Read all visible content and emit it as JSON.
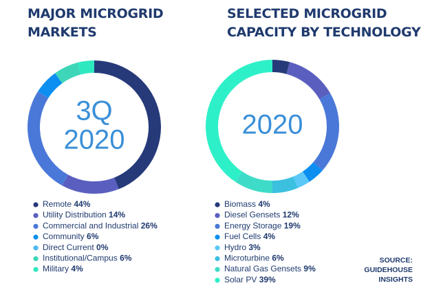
{
  "chart_data": [
    {
      "type": "donut",
      "title": [
        "MAJOR MICROGRID",
        "MARKETS"
      ],
      "center_label": [
        "3Q",
        "2020"
      ],
      "categories": [
        "Remote",
        "Utility Distribution",
        "Commercial and Industrial",
        "Community",
        "Direct Current",
        "Institutional/Campus",
        "Military"
      ],
      "values": [
        44,
        14,
        26,
        6,
        0,
        6,
        4
      ],
      "value_labels": [
        "44%",
        "14%",
        "26%",
        "6%",
        "0%",
        "6%",
        "4%"
      ],
      "colors": [
        "#263a7a",
        "#5a5fbf",
        "#4a78d8",
        "#0c8ff0",
        "#4fb8f0",
        "#3ed6b8",
        "#2ee8c0"
      ]
    },
    {
      "type": "donut",
      "title": [
        "SELECTED MICROGRID",
        "CAPACITY BY TECHNOLOGY"
      ],
      "center_label": [
        "2020"
      ],
      "categories": [
        "Biomass",
        "Diesel Gensets",
        "Energy Storage",
        "Fuel Cells",
        "Hydro",
        "Microturbine",
        "Natural Gas Gensets",
        "Solar PV"
      ],
      "values": [
        4,
        12,
        19,
        4,
        3,
        6,
        9,
        39
      ],
      "value_labels": [
        "4%",
        "12%",
        "19%",
        "4%",
        "3%",
        "6%",
        "9%",
        "39%"
      ],
      "colors": [
        "#263a7a",
        "#5a5fbf",
        "#4a78d8",
        "#0c8ff0",
        "#5cc8f8",
        "#3cc0e0",
        "#3edcc8",
        "#2ef0c8"
      ]
    }
  ],
  "source": [
    "SOURCE:",
    "GUIDEHOUSE",
    "INSIGHTS"
  ]
}
